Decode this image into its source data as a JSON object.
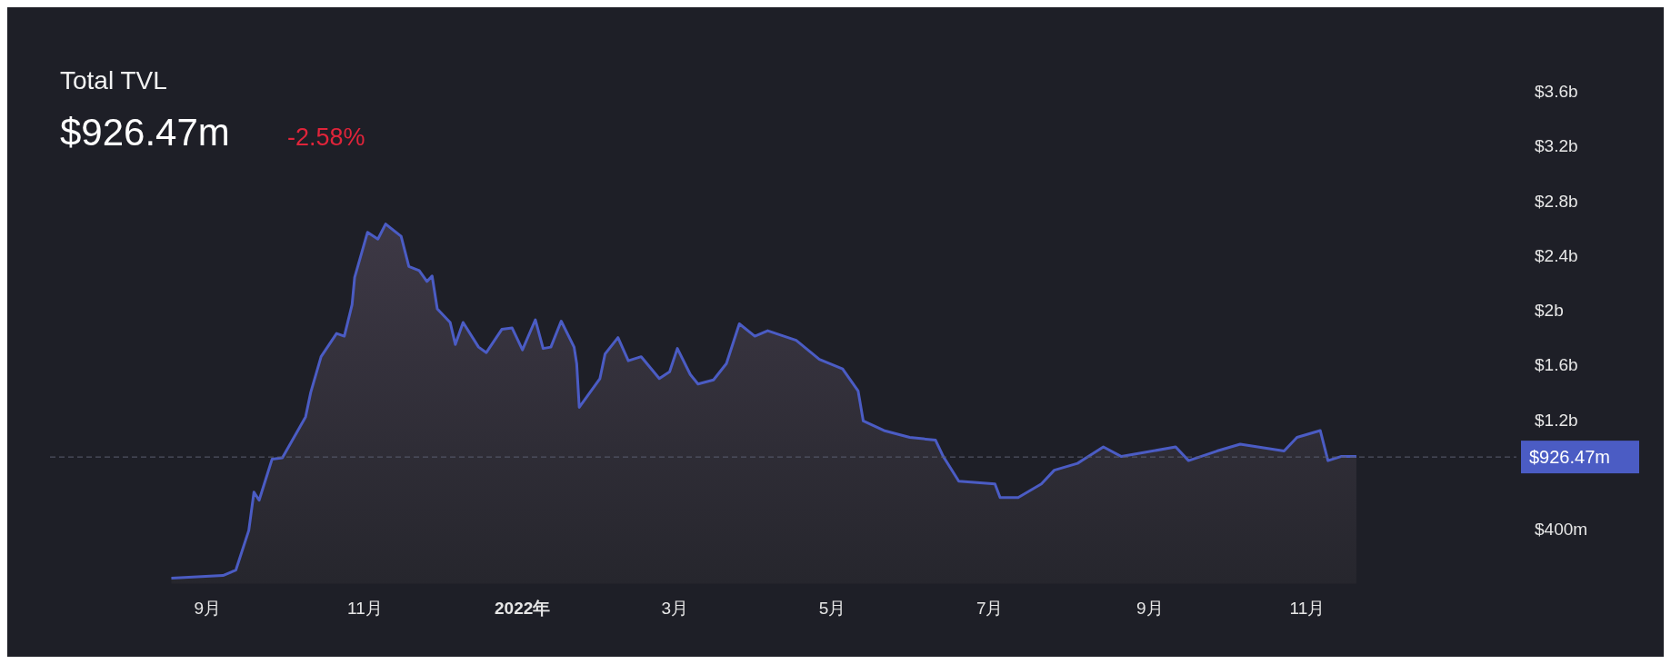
{
  "chart_data": {
    "type": "area",
    "title": "Total TVL",
    "subtitle": "$926.47m",
    "annotations": [
      "-2.58%"
    ],
    "x": [
      "2021-08-18",
      "2021-09-07",
      "2021-09-12",
      "2021-09-17",
      "2021-09-19",
      "2021-09-21",
      "2021-09-26",
      "2021-09-30",
      "2021-10-09",
      "2021-10-11",
      "2021-10-15",
      "2021-10-21",
      "2021-10-24",
      "2021-10-27",
      "2021-10-28",
      "2021-11-02",
      "2021-11-06",
      "2021-11-09",
      "2021-11-15",
      "2021-11-18",
      "2021-11-22",
      "2021-11-25",
      "2021-11-27",
      "2021-11-29",
      "2021-12-04",
      "2021-12-06",
      "2021-12-09",
      "2021-12-15",
      "2021-12-18",
      "2021-12-24",
      "2021-12-28",
      "2022-01-01",
      "2022-01-06",
      "2022-01-09",
      "2022-01-12",
      "2022-01-16",
      "2022-01-21",
      "2022-01-22",
      "2022-01-23",
      "2022-01-31",
      "2022-02-02",
      "2022-02-07",
      "2022-02-11",
      "2022-02-16",
      "2022-02-23",
      "2022-02-27",
      "2022-03-02",
      "2022-03-07",
      "2022-03-10",
      "2022-03-16",
      "2022-03-21",
      "2022-03-26",
      "2022-04-01",
      "2022-04-06",
      "2022-04-17",
      "2022-04-26",
      "2022-05-05",
      "2022-05-11",
      "2022-05-13",
      "2022-05-21",
      "2022-05-31",
      "2022-06-10",
      "2022-06-13",
      "2022-06-19",
      "2022-07-03",
      "2022-07-05",
      "2022-07-12",
      "2022-07-21",
      "2022-07-26",
      "2022-08-04",
      "2022-08-14",
      "2022-08-21",
      "2022-09-02",
      "2022-09-11",
      "2022-09-16",
      "2022-09-27",
      "2022-10-06",
      "2022-10-23",
      "2022-10-28",
      "2022-11-06",
      "2022-11-09",
      "2022-11-14",
      "2022-11-20"
    ],
    "series": [
      {
        "color": "#4b5cc4",
        "values": [
          40000000,
          60000000,
          100000000,
          390000000,
          670000000,
          610000000,
          910000000,
          920000000,
          1220000000,
          1400000000,
          1660000000,
          1830000000,
          1810000000,
          2040000000,
          2240000000,
          2570000000,
          2520000000,
          2630000000,
          2540000000,
          2320000000,
          2290000000,
          2210000000,
          2250000000,
          2010000000,
          1910000000,
          1750000000,
          1910000000,
          1730000000,
          1690000000,
          1860000000,
          1870000000,
          1710000000,
          1930000000,
          1720000000,
          1730000000,
          1920000000,
          1730000000,
          1610000000,
          1290000000,
          1500000000,
          1680000000,
          1800000000,
          1630000000,
          1660000000,
          1500000000,
          1550000000,
          1720000000,
          1530000000,
          1460000000,
          1490000000,
          1610000000,
          1900000000,
          1810000000,
          1850000000,
          1780000000,
          1640000000,
          1570000000,
          1410000000,
          1190000000,
          1120000000,
          1070000000,
          1050000000,
          930000000,
          750000000,
          730000000,
          630000000,
          630000000,
          730000000,
          830000000,
          880000000,
          1000000000,
          930000000,
          970000000,
          1000000000,
          900000000,
          970000000,
          1020000000,
          970000000,
          1070000000,
          1120000000,
          900000000,
          930000000,
          930000000
        ]
      }
    ],
    "xlim": [
      "2021-07-02",
      "2023-01-21"
    ],
    "xticks": [
      {
        "value": "2021-09",
        "label": "9月"
      },
      {
        "value": "2021-11",
        "label": "11月"
      },
      {
        "value": "2022-01",
        "label": "2022年"
      },
      {
        "value": "2022-03",
        "label": "3月"
      },
      {
        "value": "2022-05",
        "label": "5月"
      },
      {
        "value": "2022-07",
        "label": "7月"
      },
      {
        "value": "2022-09",
        "label": "9月"
      },
      {
        "value": "2022-11",
        "label": "11月"
      }
    ],
    "ylim": [
      0,
      3600000000
    ],
    "yticks": [
      {
        "value": 400000000,
        "label": "$400m"
      },
      {
        "value": 1200000000,
        "label": "$1.2b"
      },
      {
        "value": 1600000000,
        "label": "$1.6b"
      },
      {
        "value": 2000000000,
        "label": "$2b"
      },
      {
        "value": 2400000000,
        "label": "$2.4b"
      },
      {
        "value": 2800000000,
        "label": "$2.8b"
      },
      {
        "value": 3200000000,
        "label": "$3.2b"
      },
      {
        "value": 3600000000,
        "label": "$3.6b"
      }
    ],
    "ref_lines": [
      {
        "axis": "y",
        "value": 926470000,
        "label": "$926.47m",
        "color": "#5a5e70",
        "line_style": "dashed"
      }
    ]
  }
}
